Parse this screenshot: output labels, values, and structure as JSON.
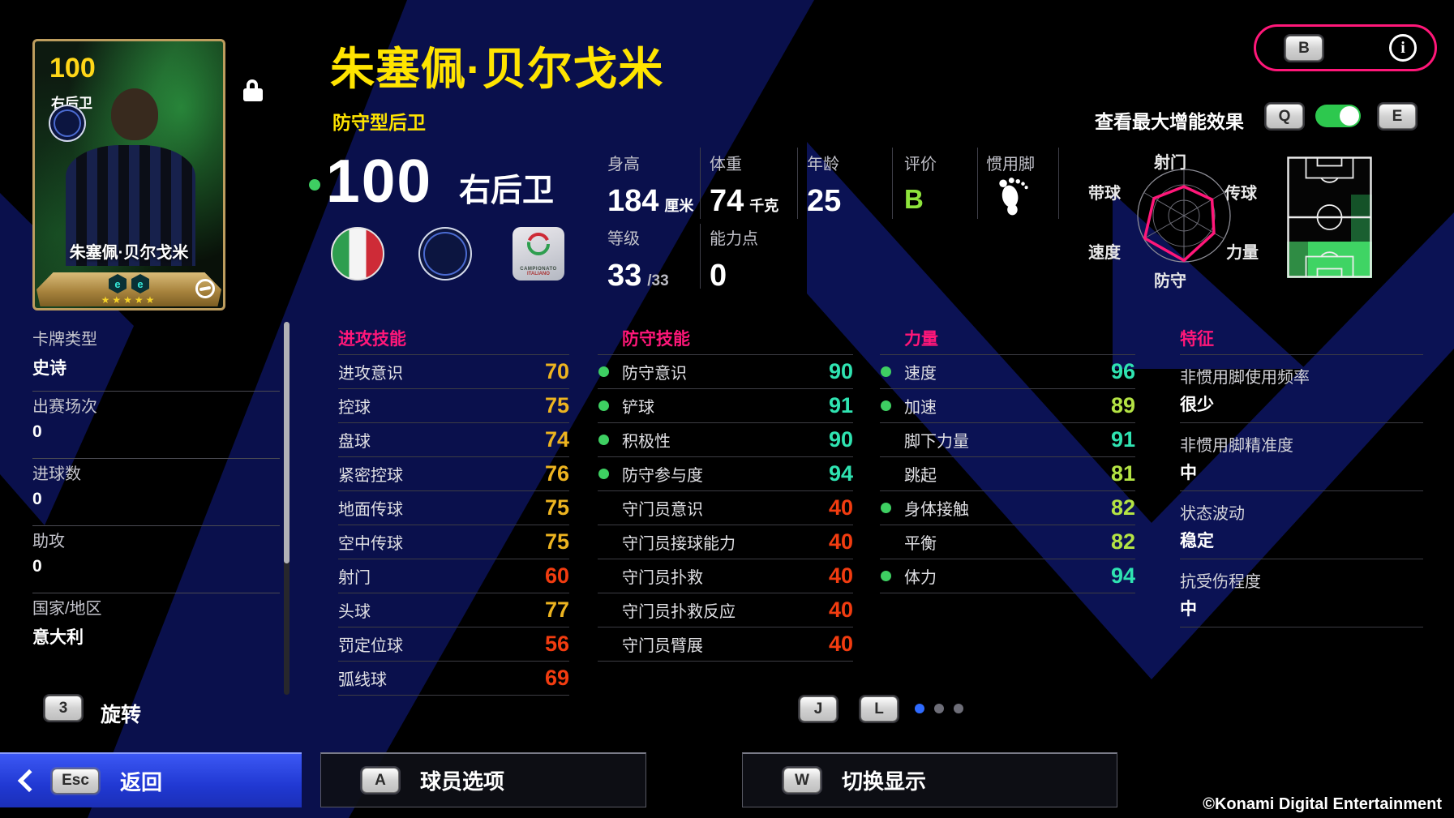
{
  "header": {
    "name": "朱塞佩·贝尔戈米",
    "role": "防守型后卫",
    "overall": "100",
    "position": "右后卫",
    "key_b": "B",
    "info_glyph": "i"
  },
  "card": {
    "rating": "100",
    "position": "右后卫",
    "name": "朱塞佩·贝尔戈米",
    "stars": "★★★★★",
    "booster_letter": "e"
  },
  "profile": {
    "height": {
      "label": "身高",
      "value": "184",
      "unit": "厘米"
    },
    "weight": {
      "label": "体重",
      "value": "74",
      "unit": "千克"
    },
    "age": {
      "label": "年龄",
      "value": "25"
    },
    "grade": {
      "label": "评价",
      "value": "B"
    },
    "foot": {
      "label": "惯用脚"
    },
    "level": {
      "label": "等级",
      "value": "33",
      "max": "/33"
    },
    "points": {
      "label": "能力点",
      "value": "0"
    }
  },
  "boost": {
    "label": "查看最大增能效果",
    "key_q": "Q",
    "key_e": "E",
    "on": true
  },
  "league_badge": {
    "line1": "CAMPIONATO",
    "line2": "ITALIANO"
  },
  "sidebar": {
    "items": [
      {
        "label": "卡牌类型",
        "value": "史诗"
      },
      {
        "label": "出赛场次",
        "value": "0"
      },
      {
        "label": "进球数",
        "value": "0"
      },
      {
        "label": "助攻",
        "value": "0"
      },
      {
        "label": "国家/地区",
        "value": "意大利"
      }
    ]
  },
  "stats": {
    "attack": {
      "title": "进攻技能",
      "rows": [
        {
          "label": "进攻意识",
          "value": 70,
          "dot": false
        },
        {
          "label": "控球",
          "value": 75,
          "dot": false
        },
        {
          "label": "盘球",
          "value": 74,
          "dot": false
        },
        {
          "label": "紧密控球",
          "value": 76,
          "dot": false
        },
        {
          "label": "地面传球",
          "value": 75,
          "dot": false
        },
        {
          "label": "空中传球",
          "value": 75,
          "dot": false
        },
        {
          "label": "射门",
          "value": 60,
          "dot": false
        },
        {
          "label": "头球",
          "value": 77,
          "dot": false
        },
        {
          "label": "罚定位球",
          "value": 56,
          "dot": false
        },
        {
          "label": "弧线球",
          "value": 69,
          "dot": false
        }
      ]
    },
    "defense": {
      "title": "防守技能",
      "rows": [
        {
          "label": "防守意识",
          "value": 90,
          "dot": true
        },
        {
          "label": "铲球",
          "value": 91,
          "dot": true
        },
        {
          "label": "积极性",
          "value": 90,
          "dot": true
        },
        {
          "label": "防守参与度",
          "value": 94,
          "dot": true
        },
        {
          "label": "守门员意识",
          "value": 40,
          "dot": false
        },
        {
          "label": "守门员接球能力",
          "value": 40,
          "dot": false
        },
        {
          "label": "守门员扑救",
          "value": 40,
          "dot": false
        },
        {
          "label": "守门员扑救反应",
          "value": 40,
          "dot": false
        },
        {
          "label": "守门员臂展",
          "value": 40,
          "dot": false
        }
      ]
    },
    "physical": {
      "title": "力量",
      "rows": [
        {
          "label": "速度",
          "value": 96,
          "dot": true
        },
        {
          "label": "加速",
          "value": 89,
          "dot": true
        },
        {
          "label": "脚下力量",
          "value": 91,
          "dot": false
        },
        {
          "label": "跳起",
          "value": 81,
          "dot": false
        },
        {
          "label": "身体接触",
          "value": 82,
          "dot": true
        },
        {
          "label": "平衡",
          "value": 82,
          "dot": false
        },
        {
          "label": "体力",
          "value": 94,
          "dot": true
        }
      ]
    },
    "traits": {
      "title": "特征",
      "items": [
        {
          "label": "非惯用脚使用频率",
          "value": "很少"
        },
        {
          "label": "非惯用脚精准度",
          "value": "中"
        },
        {
          "label": "状态波动",
          "value": "稳定"
        },
        {
          "label": "抗受伤程度",
          "value": "中"
        }
      ]
    }
  },
  "chart_data": {
    "type": "radar",
    "labels": [
      "射门",
      "传球",
      "力量",
      "防守",
      "速度",
      "带球"
    ],
    "values_pct": [
      63,
      70,
      75,
      97,
      98,
      75
    ]
  },
  "footer": {
    "rotate_key": "3",
    "rotate_label": "旋转",
    "key_j": "J",
    "key_l": "L",
    "page_dots": [
      true,
      false,
      false
    ],
    "back_key": "Esc",
    "back_label": "返回",
    "options_key": "A",
    "options_label": "球员选项",
    "display_key": "W",
    "display_label": "切换显示"
  },
  "copyright": "©Konami Digital Entertainment",
  "colors": {
    "accent_pink": "#ff1779",
    "tier_90": "#2fe3b1",
    "tier_80": "#b4e344",
    "tier_70": "#edb420",
    "tier_low": "#f23c10",
    "boost_dot": "#3ecf62",
    "grade_green": "#8ee43c",
    "title_yellow": "#ffe400"
  }
}
